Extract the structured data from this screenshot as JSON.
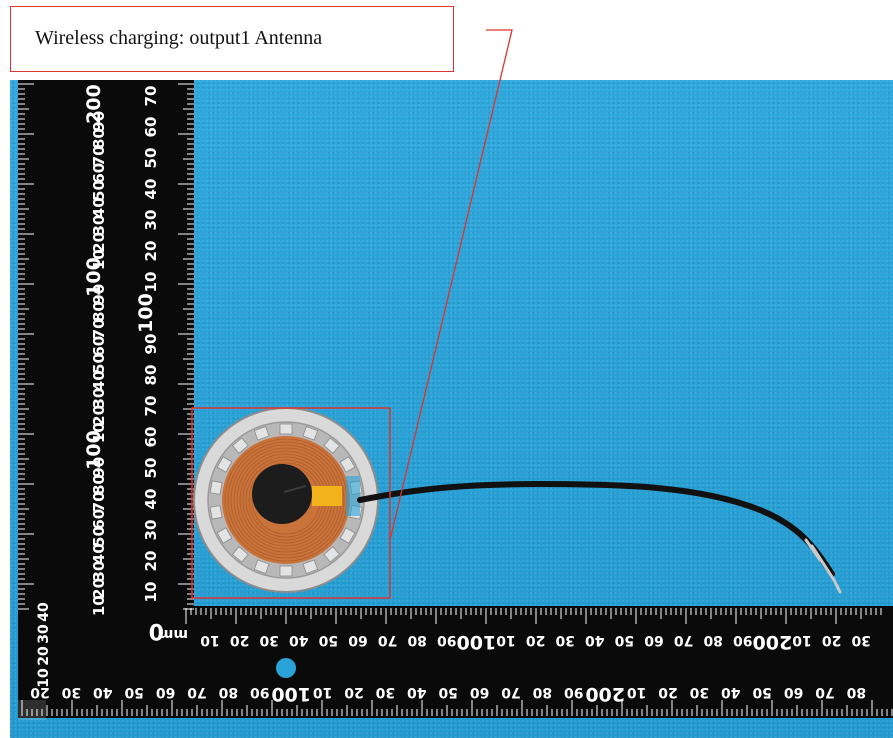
{
  "callout": {
    "label": "Wireless charging: output1 Antenna",
    "border_color": "#e0322e"
  },
  "photo": {
    "subject": "wireless-charging-coil",
    "background_color": "#2aa3d8"
  },
  "ruler": {
    "vertical_labels": [
      "200",
      "90",
      "80",
      "70",
      "60",
      "50",
      "40",
      "30",
      "20",
      "10",
      "100",
      "90",
      "80",
      "70",
      "60",
      "50",
      "40",
      "30",
      "20",
      "10",
      "100",
      "90",
      "80",
      "70",
      "60",
      "50",
      "40",
      "30",
      "20",
      "10"
    ],
    "vertical_right_labels": [
      "70",
      "60",
      "50",
      "40",
      "30",
      "20",
      "10",
      "100",
      "90",
      "80",
      "70",
      "60",
      "50",
      "40",
      "30",
      "20",
      "10"
    ],
    "horizontal_top_labels": [
      "10",
      "20",
      "30",
      "40",
      "50",
      "60",
      "70",
      "80",
      "90",
      "100",
      "10",
      "20",
      "30",
      "40",
      "50",
      "60",
      "70",
      "80",
      "90",
      "200",
      "10",
      "20",
      "30"
    ],
    "horizontal_bottom_labels": [
      "20",
      "30",
      "40",
      "50",
      "60",
      "70",
      "80",
      "90",
      "100",
      "10",
      "20",
      "30",
      "40",
      "50",
      "60",
      "70",
      "80",
      "90",
      "200",
      "10",
      "20",
      "30",
      "40",
      "50",
      "60",
      "70",
      "80"
    ],
    "zero_label": "0",
    "unit_label": "mm",
    "left_bottom_labels": [
      "40",
      "30",
      "20",
      "10"
    ]
  }
}
